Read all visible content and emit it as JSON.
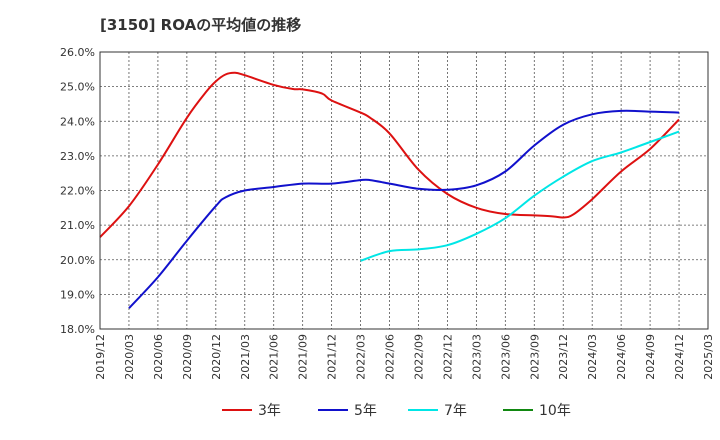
{
  "chart_data": {
    "type": "line",
    "title": "[3150]  ROAの平均値の推移",
    "xlabel": "",
    "ylabel": "",
    "ylim": [
      18.0,
      26.0
    ],
    "y_ticks": [
      "26.0%",
      "25.0%",
      "24.0%",
      "23.0%",
      "22.0%",
      "21.0%",
      "20.0%",
      "19.0%",
      "18.0%"
    ],
    "x_ticks": [
      "2019/12",
      "2020/03",
      "2020/06",
      "2020/09",
      "2020/12",
      "2021/03",
      "2021/06",
      "2021/09",
      "2021/12",
      "2022/03",
      "2022/06",
      "2022/09",
      "2022/12",
      "2023/03",
      "2023/06",
      "2023/09",
      "2023/12",
      "2024/03",
      "2024/06",
      "2024/09",
      "2024/12",
      "2025/03"
    ],
    "grid": true,
    "legend_position": "bottom",
    "series": [
      {
        "name": "3年",
        "color": "#dd1111",
        "points": [
          [
            "2019/12",
            20.65
          ],
          [
            "2020/03",
            21.55
          ],
          [
            "2020/06",
            22.75
          ],
          [
            "2020/09",
            24.1
          ],
          [
            "2020/11",
            24.85
          ],
          [
            "2020/12",
            25.15
          ],
          [
            "2021/01",
            25.35
          ],
          [
            "2021/02",
            25.4
          ],
          [
            "2021/03",
            25.33
          ],
          [
            "2021/06",
            25.05
          ],
          [
            "2021/08",
            24.93
          ],
          [
            "2021/09",
            24.92
          ],
          [
            "2021/11",
            24.8
          ],
          [
            "2021/12",
            24.6
          ],
          [
            "2022/03",
            24.25
          ],
          [
            "2022/04",
            24.1
          ],
          [
            "2022/06",
            23.65
          ],
          [
            "2022/09",
            22.6
          ],
          [
            "2022/12",
            21.9
          ],
          [
            "2023/03",
            21.5
          ],
          [
            "2023/06",
            21.32
          ],
          [
            "2023/09",
            21.28
          ],
          [
            "2023/11",
            21.25
          ],
          [
            "2023/12",
            21.22
          ],
          [
            "2024/01",
            21.3
          ],
          [
            "2024/03",
            21.75
          ],
          [
            "2024/06",
            22.55
          ],
          [
            "2024/09",
            23.2
          ],
          [
            "2024/12",
            24.05
          ]
        ]
      },
      {
        "name": "5年",
        "color": "#1111cc",
        "points": [
          [
            "2020/03",
            18.6
          ],
          [
            "2020/06",
            19.5
          ],
          [
            "2020/09",
            20.55
          ],
          [
            "2020/12",
            21.55
          ],
          [
            "2021/01",
            21.8
          ],
          [
            "2021/03",
            22.0
          ],
          [
            "2021/06",
            22.1
          ],
          [
            "2021/09",
            22.2
          ],
          [
            "2021/12",
            22.2
          ],
          [
            "2022/03",
            22.3
          ],
          [
            "2022/04",
            22.3
          ],
          [
            "2022/06",
            22.2
          ],
          [
            "2022/09",
            22.05
          ],
          [
            "2022/12",
            22.02
          ],
          [
            "2023/03",
            22.15
          ],
          [
            "2023/06",
            22.55
          ],
          [
            "2023/09",
            23.3
          ],
          [
            "2023/12",
            23.9
          ],
          [
            "2024/03",
            24.2
          ],
          [
            "2024/06",
            24.3
          ],
          [
            "2024/09",
            24.28
          ],
          [
            "2024/12",
            24.25
          ]
        ]
      },
      {
        "name": "7年",
        "color": "#00e6e6",
        "points": [
          [
            "2022/03",
            19.97
          ],
          [
            "2022/06",
            20.25
          ],
          [
            "2022/09",
            20.3
          ],
          [
            "2022/12",
            20.42
          ],
          [
            "2023/03",
            20.75
          ],
          [
            "2023/06",
            21.2
          ],
          [
            "2023/09",
            21.85
          ],
          [
            "2023/12",
            22.4
          ],
          [
            "2024/03",
            22.85
          ],
          [
            "2024/06",
            23.1
          ],
          [
            "2024/09",
            23.4
          ],
          [
            "2024/12",
            23.7
          ]
        ]
      },
      {
        "name": "10年",
        "color": "#118811",
        "points": []
      }
    ]
  }
}
